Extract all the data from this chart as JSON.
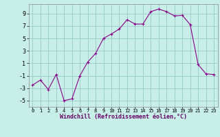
{
  "x": [
    0,
    1,
    2,
    3,
    4,
    5,
    6,
    7,
    8,
    9,
    10,
    11,
    12,
    13,
    14,
    15,
    16,
    17,
    18,
    19,
    20,
    21,
    22,
    23
  ],
  "y": [
    -2.5,
    -1.7,
    -3.2,
    -0.8,
    -5.0,
    -4.7,
    -1.0,
    1.2,
    2.6,
    5.0,
    5.7,
    6.5,
    8.0,
    7.3,
    7.3,
    9.3,
    9.7,
    9.3,
    8.6,
    8.7,
    7.2,
    0.8,
    -0.7,
    -0.8
  ],
  "line_color": "#880088",
  "marker": "+",
  "marker_size": 3,
  "xlabel": "Windchill (Refroidissement éolien,°C)",
  "bg_color": "#c8eee8",
  "grid_color": "#a0cccc",
  "xlim": [
    -0.5,
    23.5
  ],
  "ylim": [
    -6,
    10.5
  ],
  "yticks": [
    -5,
    -3,
    -1,
    1,
    3,
    5,
    7,
    9
  ],
  "xticks": [
    0,
    1,
    2,
    3,
    4,
    5,
    6,
    7,
    8,
    9,
    10,
    11,
    12,
    13,
    14,
    15,
    16,
    17,
    18,
    19,
    20,
    21,
    22,
    23
  ]
}
